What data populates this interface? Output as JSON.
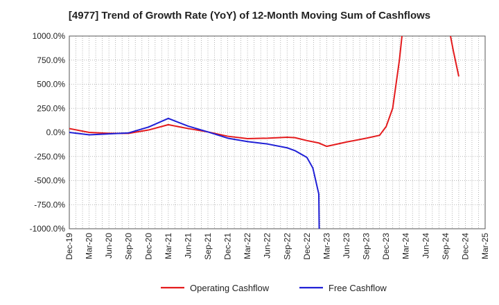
{
  "chart_data": {
    "type": "line",
    "title": "[4977]  Trend of Growth Rate (YoY) of 12-Month Moving Sum of Cashflows",
    "xlabel": "",
    "ylabel": "",
    "x_ticks": [
      "Dec-19",
      "Mar-20",
      "Jun-20",
      "Sep-20",
      "Dec-20",
      "Mar-21",
      "Jun-21",
      "Sep-21",
      "Dec-21",
      "Mar-22",
      "Jun-22",
      "Sep-22",
      "Dec-22",
      "Mar-23",
      "Jun-23",
      "Sep-23",
      "Dec-23",
      "Mar-24",
      "Jun-24",
      "Sep-24",
      "Dec-24",
      "Mar-25"
    ],
    "y_ticks": [
      "1000.0%",
      "750.0%",
      "500.0%",
      "250.0%",
      "0.0%",
      "-250.0%",
      "-500.0%",
      "-750.0%",
      "-1000.0%"
    ],
    "ylim": [
      -1000,
      1000
    ],
    "y_tick_values": [
      1000,
      750,
      500,
      250,
      0,
      -250,
      -500,
      -750,
      -1000
    ],
    "grid": true,
    "legend_position": "bottom-center",
    "series": [
      {
        "name": "Operating Cashflow",
        "color": "#e41a1c",
        "points": [
          [
            0,
            40
          ],
          [
            1,
            0
          ],
          [
            2,
            -10
          ],
          [
            3,
            -10
          ],
          [
            4,
            25
          ],
          [
            5,
            80
          ],
          [
            6,
            40
          ],
          [
            7,
            5
          ],
          [
            8,
            -40
          ],
          [
            9,
            -65
          ],
          [
            10,
            -60
          ],
          [
            11,
            -50
          ],
          [
            11.4,
            -55
          ],
          [
            12,
            -85
          ],
          [
            12.6,
            -110
          ],
          [
            13,
            -145
          ],
          [
            14,
            -100
          ],
          [
            15,
            -60
          ],
          [
            15.67,
            -30
          ],
          [
            16,
            60
          ],
          [
            16.33,
            250
          ],
          [
            16.67,
            750
          ],
          [
            16.8,
            1000
          ]
        ]
      },
      {
        "name": "Operating Cashflow",
        "color": "#e41a1c",
        "points": [
          [
            19.25,
            1000
          ],
          [
            19.4,
            840
          ],
          [
            19.67,
            580
          ]
        ]
      },
      {
        "name": "Free Cashflow",
        "color": "#1f1fd6",
        "points": [
          [
            0,
            0
          ],
          [
            1,
            -25
          ],
          [
            2,
            -15
          ],
          [
            3,
            -5
          ],
          [
            4,
            55
          ],
          [
            5,
            145
          ],
          [
            6,
            65
          ],
          [
            7,
            5
          ],
          [
            8,
            -60
          ],
          [
            9,
            -95
          ],
          [
            10,
            -120
          ],
          [
            11,
            -160
          ],
          [
            11.4,
            -190
          ],
          [
            12,
            -260
          ],
          [
            12.3,
            -370
          ],
          [
            12.6,
            -640
          ],
          [
            12.62,
            -1000
          ]
        ]
      }
    ],
    "legend": [
      {
        "name": "Operating Cashflow",
        "color": "#e41a1c"
      },
      {
        "name": "Free Cashflow",
        "color": "#1f1fd6"
      }
    ]
  }
}
